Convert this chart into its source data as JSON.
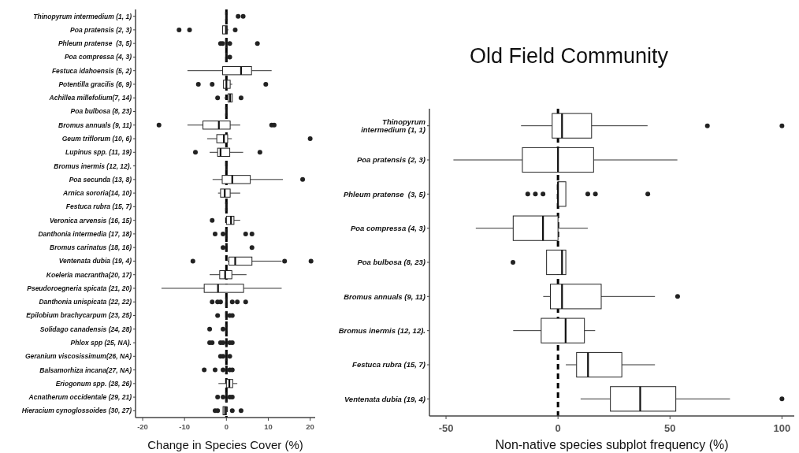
{
  "chart_data": [
    {
      "type": "box",
      "orientation": "horizontal",
      "xlabel": "Change in Species Cover (%)",
      "xlim": [
        -21.7,
        21.2
      ],
      "xticks": [
        -20,
        -10,
        0,
        10,
        20
      ],
      "grid": false,
      "ref_lines": [
        {
          "axis": "x",
          "value": 0,
          "line_style": "dashed"
        }
      ],
      "categories": [
        "Thinopyrum intermedium (1, 1)",
        "Poa pratensis (2, 3)",
        "Phleum pratense  (3, 5)",
        "Poa compressa (4, 3)",
        "Festuca idahoensis (5, 2)",
        "Potentilla gracilis (6, 9)",
        "Achillea millefolium(7, 14)",
        "Poa bulbosa (8, 23)",
        "Bromus annuals (9, 11)",
        "Geum triflorum (10, 6)",
        "Lupinus spp. (11, 19)",
        "Bromus inermis (12, 12).",
        "Poa secunda (13, 8)",
        "Arnica sororia(14, 10)",
        "Festuca rubra (15, 7)",
        "Veronica arvensis (16, 15)",
        "Danthonia intermedia (17, 18)",
        "Bromus carinatus (18, 16)",
        "Ventenata dubia (19, 4)",
        "Koeleria macrantha(20, 17)",
        "Pseudoroegneria spicata (21, 20)",
        "Danthonia unispicata (22, 22)",
        "Epilobium brachycarpum (23, 25)",
        "Solidago canadensis (24, 28)",
        "Phlox spp (25, NA).",
        "Geranium viscosissimum(26, NA)",
        "Balsamorhiza incana(27, NA)",
        "Eriogonum spp. (28, 26)",
        "Acnatherum occidentale (29, 21)",
        "Hieracium cynoglossoides (30, 27)"
      ],
      "boxes": [
        {
          "low": 0,
          "q1": 0,
          "median": 0,
          "q3": 0,
          "high": 0,
          "outliers": [
            2.8,
            4.0
          ]
        },
        {
          "low": -0.9,
          "q1": -0.9,
          "median": -0.1,
          "q3": 0.2,
          "high": 0.5,
          "outliers": [
            -11.3,
            -8.8,
            2.1
          ]
        },
        {
          "low": 0,
          "q1": 0,
          "median": 0,
          "q3": 0,
          "high": 0,
          "outliers": [
            -1.4,
            -0.9,
            0.8,
            7.4
          ]
        },
        {
          "low": 0,
          "q1": 0,
          "median": 0,
          "q3": 0,
          "high": 0,
          "outliers": [
            0.8
          ]
        },
        {
          "low": -9.3,
          "q1": -0.9,
          "median": 3.5,
          "q3": 6.0,
          "high": 10.8
        },
        {
          "low": -0.7,
          "q1": -0.7,
          "median": 0,
          "q3": 0.9,
          "high": 1.4,
          "outliers": [
            -6.7,
            -3.4,
            9.4
          ]
        },
        {
          "low": -0.5,
          "q1": 0.4,
          "median": 0.9,
          "q3": 1.4,
          "high": 1.4,
          "outliers": [
            -2.1,
            3.5
          ]
        },
        {
          "low": 0,
          "q1": 0,
          "median": 0,
          "q3": 0,
          "high": 0
        },
        {
          "low": -9.3,
          "q1": -5.6,
          "median": -1.8,
          "q3": 0.9,
          "high": 3.3,
          "outliers": [
            -16.1,
            10.8,
            11.4
          ]
        },
        {
          "low": -4.6,
          "q1": -2.3,
          "median": -0.6,
          "q3": 0.3,
          "high": 1.3,
          "outliers": [
            20.0
          ]
        },
        {
          "low": -4.0,
          "q1": -2.1,
          "median": -1.4,
          "q3": 0.8,
          "high": 4.0,
          "outliers": [
            -7.4,
            8.0
          ]
        },
        {
          "low": 0,
          "q1": 0,
          "median": 0,
          "q3": 0,
          "high": 0
        },
        {
          "low": -3.3,
          "q1": -1.0,
          "median": 1.4,
          "q3": 5.7,
          "high": 13.5,
          "outliers": [
            18.2
          ]
        },
        {
          "low": -2.0,
          "q1": -1.4,
          "median": -0.4,
          "q3": 0.9,
          "high": 3.3
        },
        {
          "low": 0,
          "q1": 0,
          "median": 0,
          "q3": 0,
          "high": 0
        },
        {
          "low": 0,
          "q1": 0,
          "median": 1.1,
          "q3": 1.8,
          "high": 3.3,
          "outliers": [
            -3.4
          ]
        },
        {
          "low": 0,
          "q1": 0,
          "median": 0,
          "q3": 0,
          "high": 0,
          "outliers": [
            -2.7,
            -0.8,
            4.6,
            6.1
          ]
        },
        {
          "low": 0,
          "q1": 0,
          "median": 0,
          "q3": 0,
          "high": 0,
          "outliers": [
            -0.8,
            6.1
          ]
        },
        {
          "low": 0.3,
          "q1": 0.6,
          "median": 2.1,
          "q3": 6.1,
          "high": 13.2,
          "outliers": [
            -8.0,
            13.9,
            20.2
          ]
        },
        {
          "low": -4.0,
          "q1": -1.6,
          "median": -0.3,
          "q3": 1.3,
          "high": 4.8
        },
        {
          "low": -15.5,
          "q1": -5.3,
          "median": -2.0,
          "q3": 4.1,
          "high": 13.2
        },
        {
          "low": 0,
          "q1": 0,
          "median": 0,
          "q3": 0,
          "high": 0,
          "outliers": [
            -3.4,
            -2.1,
            -1.4,
            1.4,
            2.6,
            4.6
          ]
        },
        {
          "low": 0,
          "q1": 0,
          "median": 0,
          "q3": 0,
          "high": 0,
          "outliers": [
            -2.1,
            0.8,
            1.4
          ]
        },
        {
          "low": 0,
          "q1": 0,
          "median": 0,
          "q3": 0,
          "high": 0,
          "outliers": [
            -4.0,
            -0.8
          ]
        },
        {
          "low": 0,
          "q1": 0,
          "median": 0,
          "q3": 0,
          "high": 0,
          "outliers": [
            -4.0,
            -3.4,
            -1.4,
            -0.8,
            0.8,
            1.4
          ]
        },
        {
          "low": 0,
          "q1": 0,
          "median": 0,
          "q3": 0,
          "high": 0,
          "outliers": [
            -1.4,
            -0.8,
            0.8
          ]
        },
        {
          "low": 0,
          "q1": 0,
          "median": 0,
          "q3": 0,
          "high": 0,
          "outliers": [
            -5.3,
            -2.7,
            -0.8,
            0.8,
            1.4
          ]
        },
        {
          "low": -1.9,
          "q1": 0,
          "median": 0.7,
          "q3": 1.5,
          "high": 2.6
        },
        {
          "low": 0,
          "q1": 0,
          "median": 0,
          "q3": 0,
          "high": 0,
          "outliers": [
            -2.1,
            -0.8,
            0.8,
            1.4
          ]
        },
        {
          "low": -0.8,
          "q1": -0.8,
          "median": -0.3,
          "q3": 0,
          "high": 0,
          "outliers": [
            -2.7,
            -2.1,
            1.4,
            3.5
          ]
        }
      ]
    },
    {
      "type": "box",
      "orientation": "horizontal",
      "title": "Old Field Community",
      "xlabel": "Non-native species subplot frequency (%)",
      "xlim": [
        -57.4,
        105.5
      ],
      "xticks": [
        -50,
        0,
        50,
        100
      ],
      "grid": false,
      "ref_lines": [
        {
          "axis": "x",
          "value": 0,
          "line_style": "dashed"
        }
      ],
      "categories": [
        "Thinopyrum intermedium (1, 1)",
        "Poa pratensis (2, 3)",
        "Phleum pratense  (3, 5)",
        "Poa compressa (4, 3)",
        "Poa bulbosa (8, 23)",
        "Bromus annuals (9, 11)",
        "Bromus inermis (12, 12).",
        "Festuca rubra (15, 7)",
        "Ventenata dubia (19, 4)"
      ],
      "boxes": [
        {
          "low": -16.5,
          "q1": -2.6,
          "median": 1.8,
          "q3": 15.0,
          "high": 40.0,
          "outliers": [
            66.7,
            100
          ]
        },
        {
          "low": -46.7,
          "q1": -15.9,
          "median": 0,
          "q3": 15.9,
          "high": 53.3
        },
        {
          "low": 0,
          "q1": 0,
          "median": 0,
          "q3": 3.5,
          "high": 3.5,
          "outliers": [
            -13.5,
            -10.1,
            -6.7,
            13.3,
            16.7,
            40.1
          ]
        },
        {
          "low": -36.7,
          "q1": -20.0,
          "median": -6.7,
          "q3": 0,
          "high": 13.3
        },
        {
          "low": -5.1,
          "q1": -5.1,
          "median": 1.8,
          "q3": 3.5,
          "high": 3.5,
          "outliers": [
            -20.1
          ]
        },
        {
          "low": -6.6,
          "q1": -3.4,
          "median": 1.8,
          "q3": 19.3,
          "high": 43.3,
          "outliers": [
            53.4
          ]
        },
        {
          "low": -20.0,
          "q1": -7.5,
          "median": 3.4,
          "q3": 11.8,
          "high": 16.6
        },
        {
          "low": 3.5,
          "q1": 8.3,
          "median": 13.4,
          "q3": 28.5,
          "high": 43.3
        },
        {
          "low": 10.1,
          "q1": 23.4,
          "median": 36.7,
          "q3": 52.6,
          "high": 76.8,
          "outliers": [
            100
          ]
        }
      ]
    }
  ]
}
